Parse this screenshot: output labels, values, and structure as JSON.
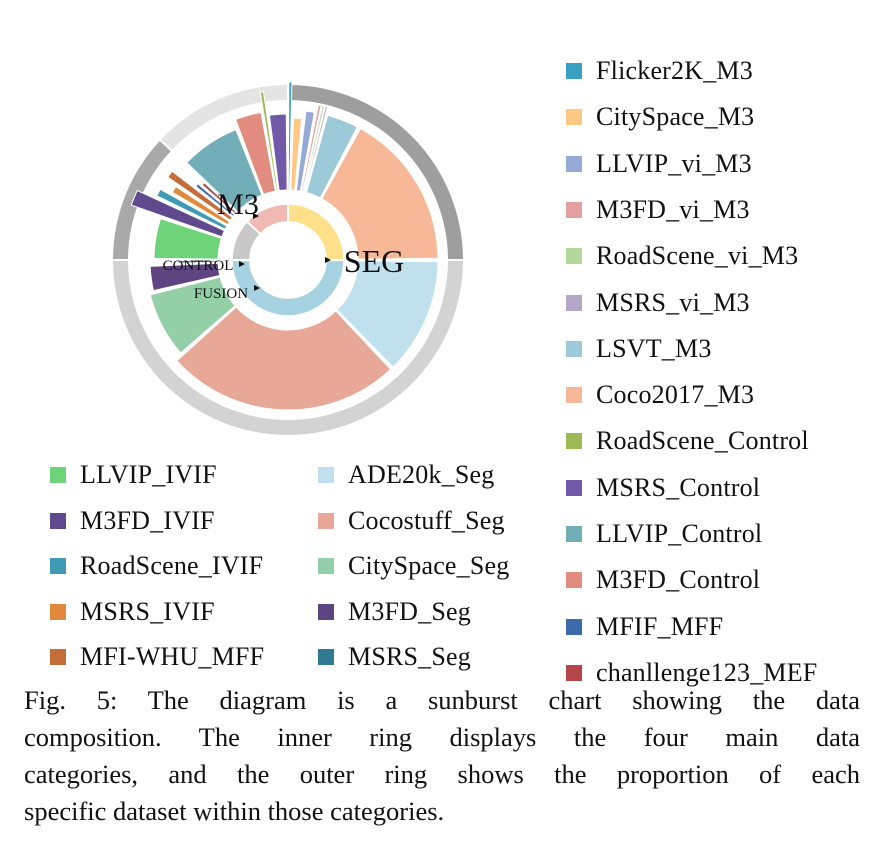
{
  "chart_data": {
    "type": "sunburst",
    "inner_labels": [
      "M3",
      "SEG",
      "CONTROL",
      "FUSION"
    ],
    "categories": [
      {
        "name": "M3",
        "value": 25,
        "color": "#ffe08a",
        "band_color": "#9e9e9e"
      },
      {
        "name": "SEG",
        "value": 50,
        "color": "#a6d2e1",
        "band_color": "#d3d3d3"
      },
      {
        "name": "FUSION",
        "value": 12,
        "color": "#c8c8c8",
        "band_color": "#a9a9a9"
      },
      {
        "name": "CONTROL",
        "value": 13,
        "color": "#f0b9b3",
        "band_color": "#e4e4e4"
      }
    ],
    "series": [
      {
        "name": "ADE20k_Seg",
        "category": "SEG",
        "value": 14.0,
        "r": 1.0,
        "color": "#bfe0ec"
      },
      {
        "name": "Cocostuff_Seg",
        "category": "SEG",
        "value": 28.0,
        "r": 1.0,
        "color": "#e8a898"
      },
      {
        "name": "CitySpace_Seg",
        "category": "SEG",
        "value": 8.5,
        "r": 0.9,
        "color": "#93cfa7"
      },
      {
        "name": "M3FD_Seg",
        "category": "SEG",
        "value": 3.5,
        "r": 0.85,
        "color": "#5e4480"
      },
      {
        "name": "MSRS_Seg",
        "category": "SEG",
        "value": 0.6,
        "r": 0.5,
        "color": "#2f7a91"
      },
      {
        "name": "LLVIP_IVIF",
        "category": "FUSION",
        "value": 2.2,
        "r": 0.8,
        "color": "#6dd47a"
      },
      {
        "name": "M3FD_IVIF",
        "category": "FUSION",
        "value": 0.8,
        "r": 1.2,
        "color": "#5e4a8c"
      },
      {
        "name": "RoadScene_IVIF",
        "category": "FUSION",
        "value": 0.5,
        "r": 0.95,
        "color": "#3f9bb3"
      },
      {
        "name": "MSRS_IVIF",
        "category": "FUSION",
        "value": 0.5,
        "r": 0.8,
        "color": "#e28a3b"
      },
      {
        "name": "MFI-WHU_MFF",
        "category": "FUSION",
        "value": 0.5,
        "r": 0.95,
        "color": "#c46e3a"
      },
      {
        "name": "MFIF_MFF",
        "category": "FUSION",
        "value": 0.3,
        "r": 0.6,
        "color": "#3d6aaa"
      },
      {
        "name": "chanllenge123_MEF",
        "category": "FUSION",
        "value": 0.3,
        "r": 0.55,
        "color": "#b4464a"
      },
      {
        "name": "LLVIP_Control",
        "category": "CONTROL",
        "value": 4.5,
        "r": 0.88,
        "color": "#72aeb8"
      },
      {
        "name": "M3FD_Control",
        "category": "CONTROL",
        "value": 2.0,
        "r": 1.0,
        "color": "#e28c80"
      },
      {
        "name": "RoadScene_Control",
        "category": "CONTROL",
        "value": 0.3,
        "r": 1.25,
        "color": "#9cba55"
      },
      {
        "name": "MSRS_Control",
        "category": "CONTROL",
        "value": 1.4,
        "r": 0.95,
        "color": "#7159a8"
      },
      {
        "name": "Flicker2K_M3",
        "category": "M3",
        "value": 0.4,
        "r": 1.35,
        "color": "#3aa0c2"
      },
      {
        "name": "CitySpace_M3",
        "category": "M3",
        "value": 1.2,
        "r": 0.9,
        "color": "#ffc882"
      },
      {
        "name": "LLVIP_vi_M3",
        "category": "M3",
        "value": 1.2,
        "r": 1.0,
        "color": "#95aad6"
      },
      {
        "name": "M3FD_vi_M3",
        "category": "M3",
        "value": 0.4,
        "r": 1.1,
        "color": "#e2a0a0"
      },
      {
        "name": "RoadScene_vi_M3",
        "category": "M3",
        "value": 0.3,
        "r": 1.1,
        "color": "#b5d69c"
      },
      {
        "name": "MSRS_vi_M3",
        "category": "M3",
        "value": 0.3,
        "r": 1.1,
        "color": "#b6a6cc"
      },
      {
        "name": "LSVT_M3",
        "category": "M3",
        "value": 3.5,
        "r": 1.0,
        "color": "#9ccad9"
      },
      {
        "name": "Coco2017_M3",
        "category": "M3",
        "value": 16.0,
        "r": 1.0,
        "color": "#f6b896"
      }
    ],
    "legend": {
      "right": [
        "Flicker2K_M3",
        "CitySpace_M3",
        "LLVIP_vi_M3",
        "M3FD_vi_M3",
        "RoadScene_vi_M3",
        "MSRS_vi_M3",
        "LSVT_M3",
        "Coco2017_M3",
        "RoadScene_Control",
        "MSRS_Control",
        "LLVIP_Control",
        "M3FD_Control",
        "MFIF_MFF",
        "chanllenge123_MEF"
      ],
      "bottom_left": [
        "LLVIP_IVIF",
        "M3FD_IVIF",
        "RoadScene_IVIF",
        "MSRS_IVIF",
        "MFI-WHU_MFF"
      ],
      "bottom_middle": [
        "ADE20k_Seg",
        "Cocostuff_Seg",
        "CitySpace_Seg",
        "M3FD_Seg",
        "MSRS_Seg"
      ]
    },
    "legend_colors": {
      "Flicker2K_M3": "#3aa0c2",
      "CitySpace_M3": "#ffc882",
      "LLVIP_vi_M3": "#95aad6",
      "M3FD_vi_M3": "#e2a0a0",
      "RoadScene_vi_M3": "#b5d69c",
      "MSRS_vi_M3": "#b6a6cc",
      "LSVT_M3": "#9ccad9",
      "Coco2017_M3": "#f6b896",
      "RoadScene_Control": "#9cba55",
      "MSRS_Control": "#7159a8",
      "LLVIP_Control": "#72aeb8",
      "M3FD_Control": "#e28c80",
      "MFIF_MFF": "#3d6aaa",
      "chanllenge123_MEF": "#b4464a",
      "LLVIP_IVIF": "#6dd47a",
      "M3FD_IVIF": "#5e4a8c",
      "RoadScene_IVIF": "#3f9bb3",
      "MSRS_IVIF": "#e28a3b",
      "MFI-WHU_MFF": "#c46e3a",
      "ADE20k_Seg": "#bfe0ec",
      "Cocostuff_Seg": "#e8a898",
      "CitySpace_Seg": "#93cfa7",
      "M3FD_Seg": "#5e4480",
      "MSRS_Seg": "#2f7a91"
    }
  },
  "caption": {
    "lines": [
      "Fig. 5: The diagram is a sunburst chart showing the data",
      "composition. The inner ring displays the four main data",
      "categories, and the outer ring shows the proportion of each",
      "specific dataset within those categories."
    ]
  }
}
